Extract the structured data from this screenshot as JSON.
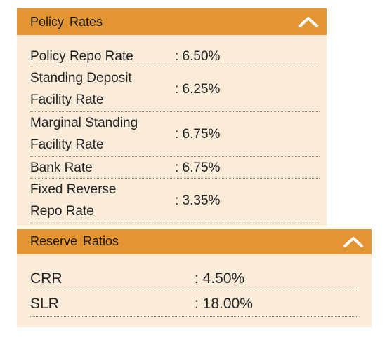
{
  "policy_rates": {
    "title": "Policy  Rates",
    "collapse_icon": "chevron-up-icon",
    "rows": [
      {
        "label": "Policy Repo Rate",
        "value": ": 6.50%"
      },
      {
        "label": "Standing Deposit Facility Rate",
        "value": ": 6.25%"
      },
      {
        "label": "Marginal Standing Facility Rate",
        "value": ": 6.75%"
      },
      {
        "label": "Bank Rate",
        "value": ": 6.75%"
      },
      {
        "label": "Fixed Reverse Repo Rate",
        "value": ": 3.35%"
      }
    ]
  },
  "reserve_ratios": {
    "title": "Reserve  Ratios",
    "collapse_icon": "chevron-up-icon",
    "rows": [
      {
        "label": "CRR",
        "value": ": 4.50%"
      },
      {
        "label": "SLR",
        "value": ": 18.00%"
      }
    ]
  },
  "colors": {
    "header_bg": "#e29532",
    "panel_bg": "#fbebd9",
    "chevron": "#ffffff"
  }
}
